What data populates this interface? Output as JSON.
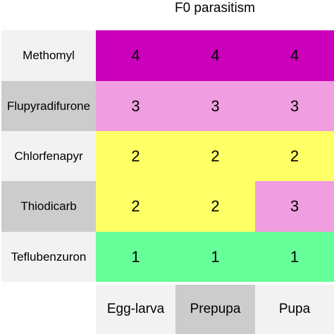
{
  "chart_data": {
    "type": "heatmap",
    "title": "F0 parasitism",
    "rows": [
      "Methomyl",
      "Flupyradifurone",
      "Chlorfenapyr",
      "Thiodicarb",
      "Teflubenzuron"
    ],
    "columns": [
      "Egg-larva",
      "Prepupa",
      "Pupa"
    ],
    "values": [
      [
        4,
        4,
        4
      ],
      [
        3,
        3,
        3
      ],
      [
        2,
        2,
        2
      ],
      [
        2,
        2,
        3
      ],
      [
        1,
        1,
        1
      ]
    ],
    "colors": {
      "1": "#66ff99",
      "2": "#ffff66",
      "3": "#f09edf",
      "4": "#cc00bb"
    },
    "row_label_shading": [
      "light",
      "dark",
      "light",
      "dark",
      "light"
    ],
    "column_label_shading": [
      "light",
      "dark",
      "light"
    ]
  }
}
